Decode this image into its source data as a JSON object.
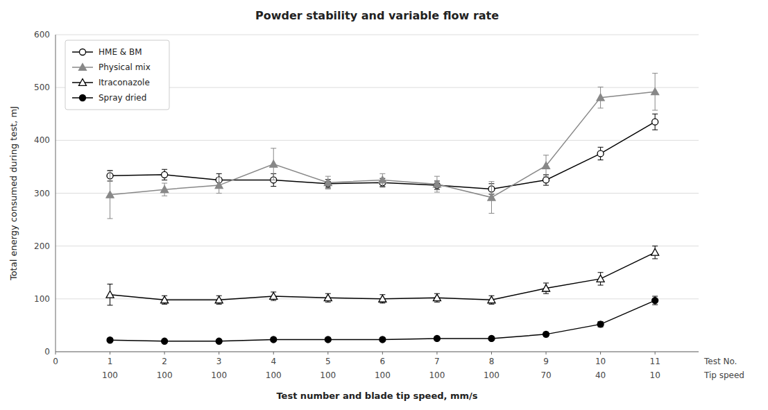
{
  "chart_data": {
    "type": "line",
    "title": "Powder stability and variable flow rate",
    "x_label": "Test number and blade tip speed, mm/s",
    "y_label": "Total energy consumed during test, mJ",
    "x": [
      1,
      2,
      3,
      4,
      5,
      6,
      7,
      8,
      9,
      10,
      11
    ],
    "xlim": [
      0,
      11.8
    ],
    "xticks": [
      0,
      1,
      2,
      3,
      4,
      5,
      6,
      7,
      8,
      9,
      10,
      11
    ],
    "ylim": [
      0,
      600
    ],
    "yticks": [
      0,
      100,
      200,
      300,
      400,
      500,
      600
    ],
    "grid": true,
    "legend": "upper left",
    "annotations": [
      {
        "text": "Test No."
      },
      {
        "text": "Tip speed"
      },
      {
        "text": "100",
        "x": 1
      },
      {
        "text": "100",
        "x": 2
      },
      {
        "text": "100",
        "x": 3
      },
      {
        "text": "100",
        "x": 4
      },
      {
        "text": "100",
        "x": 5
      },
      {
        "text": "100",
        "x": 6
      },
      {
        "text": "100",
        "x": 7
      },
      {
        "text": "100",
        "x": 8
      },
      {
        "text": "70",
        "x": 9
      },
      {
        "text": "40",
        "x": 10
      },
      {
        "text": "10",
        "x": 11
      }
    ],
    "series": [
      {
        "name": "HME & BM",
        "color": "#000000",
        "marker": "circle-open",
        "line_style": "solid",
        "values": [
          333,
          335,
          325,
          325,
          318,
          320,
          315,
          308,
          325,
          375,
          435
        ],
        "errors": [
          10,
          10,
          12,
          12,
          8,
          8,
          8,
          10,
          10,
          12,
          15
        ]
      },
      {
        "name": "Physical mix",
        "color": "#888888",
        "marker": "triangle",
        "line_style": "solid",
        "values": [
          297,
          307,
          315,
          355,
          320,
          325,
          317,
          292,
          352,
          481,
          492
        ],
        "errors": [
          45,
          12,
          15,
          30,
          12,
          12,
          15,
          30,
          20,
          20,
          35
        ]
      },
      {
        "name": "Itraconazole",
        "color": "#000000",
        "marker": "triangle-open",
        "line_style": "solid",
        "values": [
          108,
          98,
          98,
          105,
          102,
          100,
          102,
          98,
          120,
          138,
          188
        ],
        "errors": [
          20,
          8,
          8,
          8,
          8,
          8,
          8,
          8,
          10,
          12,
          12
        ]
      },
      {
        "name": "Spray dried",
        "color": "#000000",
        "marker": "circle",
        "line_style": "solid",
        "values": [
          22,
          20,
          20,
          23,
          23,
          23,
          25,
          25,
          33,
          52,
          97
        ],
        "errors": [
          3,
          3,
          3,
          3,
          3,
          3,
          3,
          3,
          4,
          5,
          8
        ]
      }
    ]
  }
}
